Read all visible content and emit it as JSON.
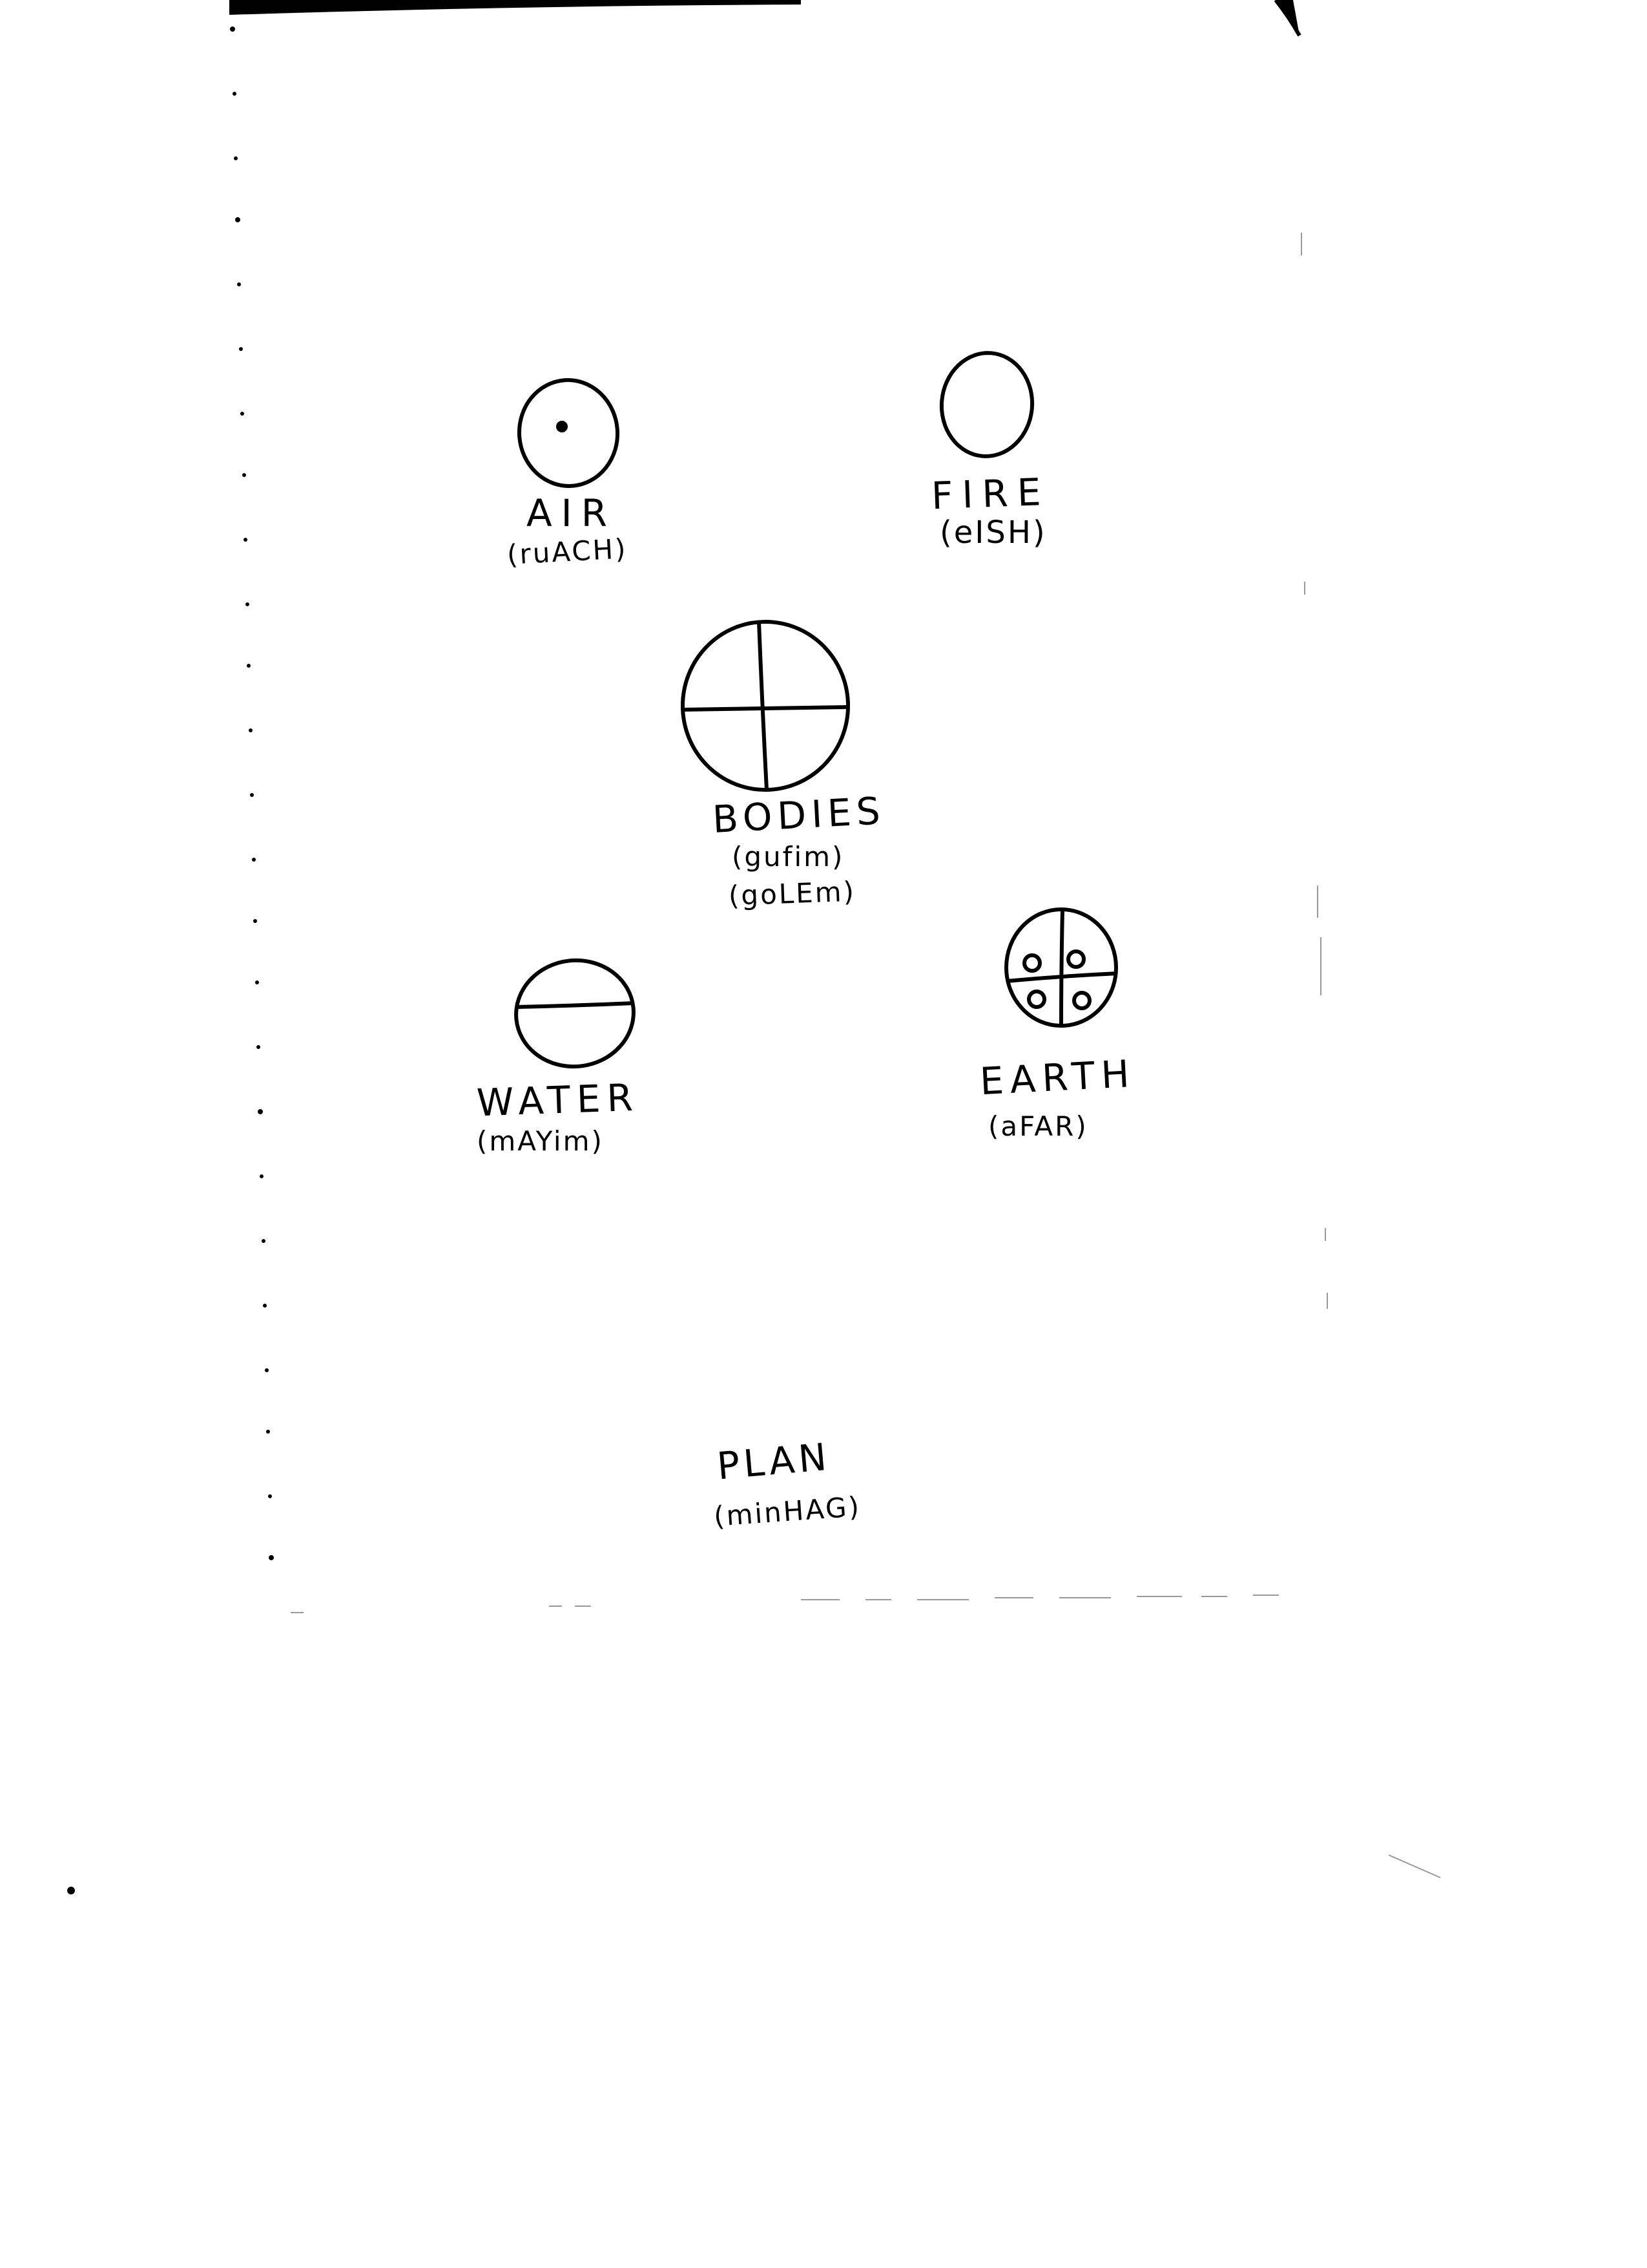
{
  "diagram": {
    "elements": [
      {
        "id": "air",
        "name": "AIR",
        "hebrew": "(ruACH)",
        "symbol": "circle-with-dot-icon"
      },
      {
        "id": "fire",
        "name": "FIRE",
        "hebrew": "(eISH)",
        "symbol": "plain-circle-icon"
      },
      {
        "id": "bodies",
        "name": "BODIES",
        "hebrew": [
          "(gufim)",
          "(goLEm)"
        ],
        "symbol": "quartered-circle-icon"
      },
      {
        "id": "water",
        "name": "WATER",
        "hebrew": "(mAYim)",
        "symbol": "halved-circle-icon"
      },
      {
        "id": "earth",
        "name": "EARTH",
        "hebrew": "(aFAR)",
        "symbol": "quartered-circle-with-dots-icon"
      }
    ],
    "footer": {
      "name": "PLAN",
      "hebrew": "(minHAG)"
    }
  },
  "colors": {
    "ink": "#000000",
    "paper": "#ffffff",
    "scan": "#cccccc"
  }
}
